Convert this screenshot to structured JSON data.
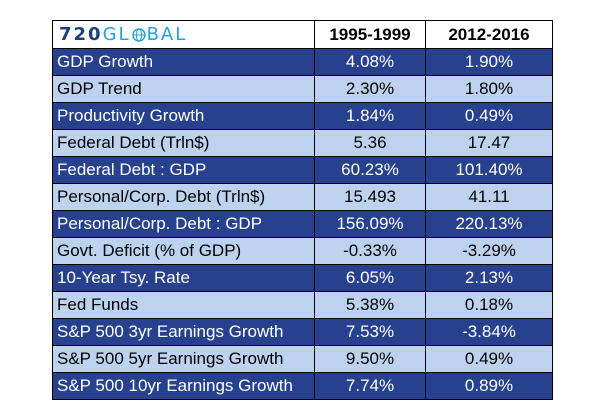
{
  "header": {
    "logo_num": "720",
    "logo_pre": "GL",
    "logo_post": "BAL",
    "col1": "1995-1999",
    "col2": "2012-2016"
  },
  "colors": {
    "dark_row": "#27418f",
    "light_row": "#bcd2ef",
    "logo_navy": "#1d3f78",
    "logo_cyan": "#23a3d6"
  },
  "rows": [
    {
      "label": "GDP Growth",
      "v1": "4.08%",
      "v2": "1.90%"
    },
    {
      "label": "GDP Trend",
      "v1": "2.30%",
      "v2": "1.80%"
    },
    {
      "label": "Productivity Growth",
      "v1": "1.84%",
      "v2": "0.49%"
    },
    {
      "label": "Federal Debt (Trln$)",
      "v1": "5.36",
      "v2": "17.47"
    },
    {
      "label": "Federal Debt : GDP",
      "v1": "60.23%",
      "v2": "101.40%"
    },
    {
      "label": "Personal/Corp. Debt (Trln$)",
      "v1": "15.493",
      "v2": "41.11"
    },
    {
      "label": "Personal/Corp. Debt : GDP",
      "v1": "156.09%",
      "v2": "220.13%"
    },
    {
      "label": "Govt. Deficit (% of GDP)",
      "v1": "-0.33%",
      "v2": "-3.29%"
    },
    {
      "label": "10-Year Tsy. Rate",
      "v1": "6.05%",
      "v2": "2.13%"
    },
    {
      "label": "Fed Funds",
      "v1": "5.38%",
      "v2": "0.18%"
    },
    {
      "label": "S&P 500 3yr Earnings Growth",
      "v1": "7.53%",
      "v2": "-3.84%"
    },
    {
      "label": "S&P 500 5yr Earnings Growth",
      "v1": "9.50%",
      "v2": "0.49%"
    },
    {
      "label": "S&P 500 10yr Earnings Growth",
      "v1": "7.74%",
      "v2": "0.89%"
    }
  ]
}
